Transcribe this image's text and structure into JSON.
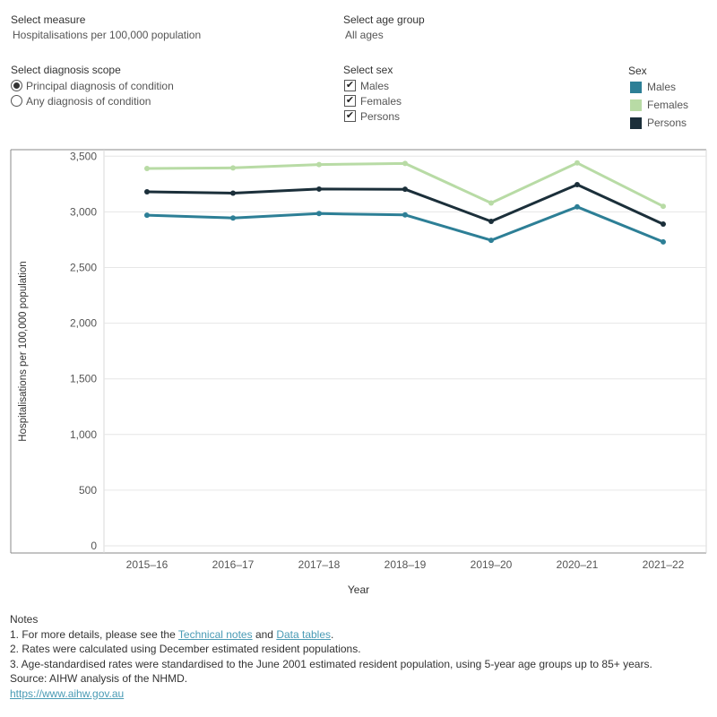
{
  "controls": {
    "measure": {
      "label": "Select measure",
      "value": "Hospitalisations per 100,000 population"
    },
    "age_group": {
      "label": "Select age group",
      "value": "All ages"
    },
    "diagnosis_scope": {
      "label": "Select diagnosis scope",
      "options": [
        {
          "label": "Principal diagnosis of condition",
          "selected": true
        },
        {
          "label": "Any diagnosis of condition",
          "selected": false
        }
      ]
    },
    "sex": {
      "label": "Select sex",
      "options": [
        {
          "label": "Males",
          "checked": true
        },
        {
          "label": "Females",
          "checked": true
        },
        {
          "label": "Persons",
          "checked": true
        }
      ]
    }
  },
  "legend": {
    "title": "Sex",
    "items": [
      {
        "label": "Males",
        "color": "#2d7f96"
      },
      {
        "label": "Females",
        "color": "#b8dba5"
      },
      {
        "label": "Persons",
        "color": "#1b2f3a"
      }
    ]
  },
  "chart_data": {
    "type": "line",
    "title": "",
    "xlabel": "Year",
    "ylabel": "Hospitalisations per 100,000 population",
    "categories": [
      "2015–16",
      "2016–17",
      "2017–18",
      "2018–19",
      "2019–20",
      "2020–21",
      "2021–22"
    ],
    "ylim": [
      0,
      3600
    ],
    "yticks": [
      0,
      500,
      1000,
      1500,
      2000,
      2500,
      3000,
      3500
    ],
    "ytick_labels": [
      "0",
      "500",
      "1,000",
      "1,500",
      "2,000",
      "2,500",
      "3,000",
      "3,500"
    ],
    "grid": true,
    "series": [
      {
        "name": "Females",
        "color": "#b8dba5",
        "values": [
          3390,
          3395,
          3425,
          3435,
          3080,
          3440,
          3050
        ]
      },
      {
        "name": "Persons",
        "color": "#1b2f3a",
        "values": [
          3180,
          3168,
          3205,
          3203,
          2915,
          3245,
          2890
        ]
      },
      {
        "name": "Males",
        "color": "#2d7f96",
        "values": [
          2970,
          2945,
          2985,
          2973,
          2745,
          3045,
          2730
        ]
      }
    ]
  },
  "notes": {
    "heading": "Notes",
    "line1_prefix": "1. For more details, please see the ",
    "line1_link1": "Technical notes",
    "line1_mid": " and ",
    "line1_link2": "Data tables",
    "line1_suffix": ".",
    "line2": "2. Rates were calculated using December estimated resident populations.",
    "line3": "3. Age-standardised rates were standardised to the June 2001 estimated resident population, using 5-year age groups up to 85+ years.",
    "source": "Source: AIHW analysis of the NHMD.",
    "url": "https://www.aihw.gov.au"
  }
}
